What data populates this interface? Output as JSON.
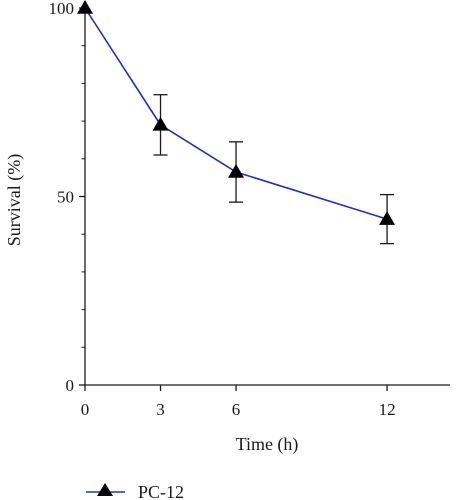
{
  "chart_data": {
    "type": "line",
    "title": "",
    "xlabel": "Time (h)",
    "ylabel": "Survival (%)",
    "xlim": [
      0,
      14.5
    ],
    "ylim": [
      0,
      100
    ],
    "x_ticks": [
      0,
      3,
      6,
      12
    ],
    "y_ticks": [
      0,
      50,
      100
    ],
    "grid": false,
    "legend_position": "bottom-left",
    "series": [
      {
        "name": "PC-12",
        "color": "#1f2fbf",
        "marker": "triangle",
        "marker_color": "#000000",
        "x": [
          0,
          3,
          6,
          12
        ],
        "y": [
          100,
          69,
          56.5,
          44
        ],
        "error": [
          0,
          8,
          8,
          6.5
        ]
      }
    ]
  }
}
